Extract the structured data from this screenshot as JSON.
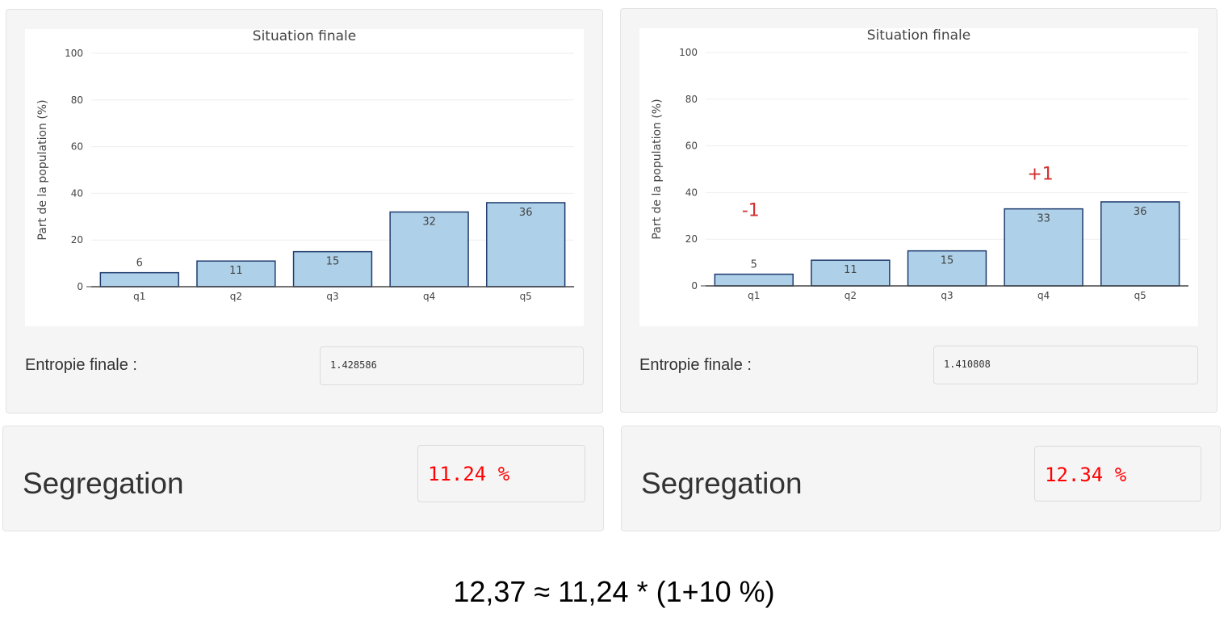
{
  "panels": [
    {
      "chart_title": "Situation finale",
      "entropy_label": "Entropie finale :",
      "entropy_value": "1.428586",
      "segregation_label": "Segregation",
      "segregation_value": "11.24 %",
      "annotations": []
    },
    {
      "chart_title": "Situation finale",
      "entropy_label": "Entropie finale :",
      "entropy_value": "1.410808",
      "segregation_label": "Segregation",
      "segregation_value": "12.34 %",
      "annotations": [
        {
          "text": "-1",
          "category": "q1"
        },
        {
          "text": "+1",
          "category": "q4"
        }
      ]
    }
  ],
  "chart_data": [
    {
      "type": "bar",
      "title": "Situation finale",
      "ylabel": "Part de la population (%)",
      "xlabel": "",
      "categories": [
        "q1",
        "q2",
        "q3",
        "q4",
        "q5"
      ],
      "values": [
        6,
        11,
        15,
        32,
        36
      ],
      "data_labels": [
        "6",
        "11",
        "15",
        "32",
        "36"
      ],
      "ylim": [
        0,
        100
      ],
      "yticks": [
        0,
        20,
        40,
        60,
        80,
        100
      ],
      "grid": true
    },
    {
      "type": "bar",
      "title": "Situation finale",
      "ylabel": "Part de la population (%)",
      "xlabel": "",
      "categories": [
        "q1",
        "q2",
        "q3",
        "q4",
        "q5"
      ],
      "values": [
        5,
        11,
        15,
        33,
        36
      ],
      "data_labels": [
        "5",
        "11",
        "15",
        "33",
        "36"
      ],
      "ylim": [
        0,
        100
      ],
      "yticks": [
        0,
        20,
        40,
        60,
        80,
        100
      ],
      "grid": true
    }
  ],
  "colors": {
    "bar_fill": "#aed0e8",
    "bar_stroke": "#1f3b6e",
    "annotation": "#d32f2f",
    "segregation_value": "#ff0000"
  },
  "formula": "12,37 ≈ 11,24 * (1+10 %)"
}
